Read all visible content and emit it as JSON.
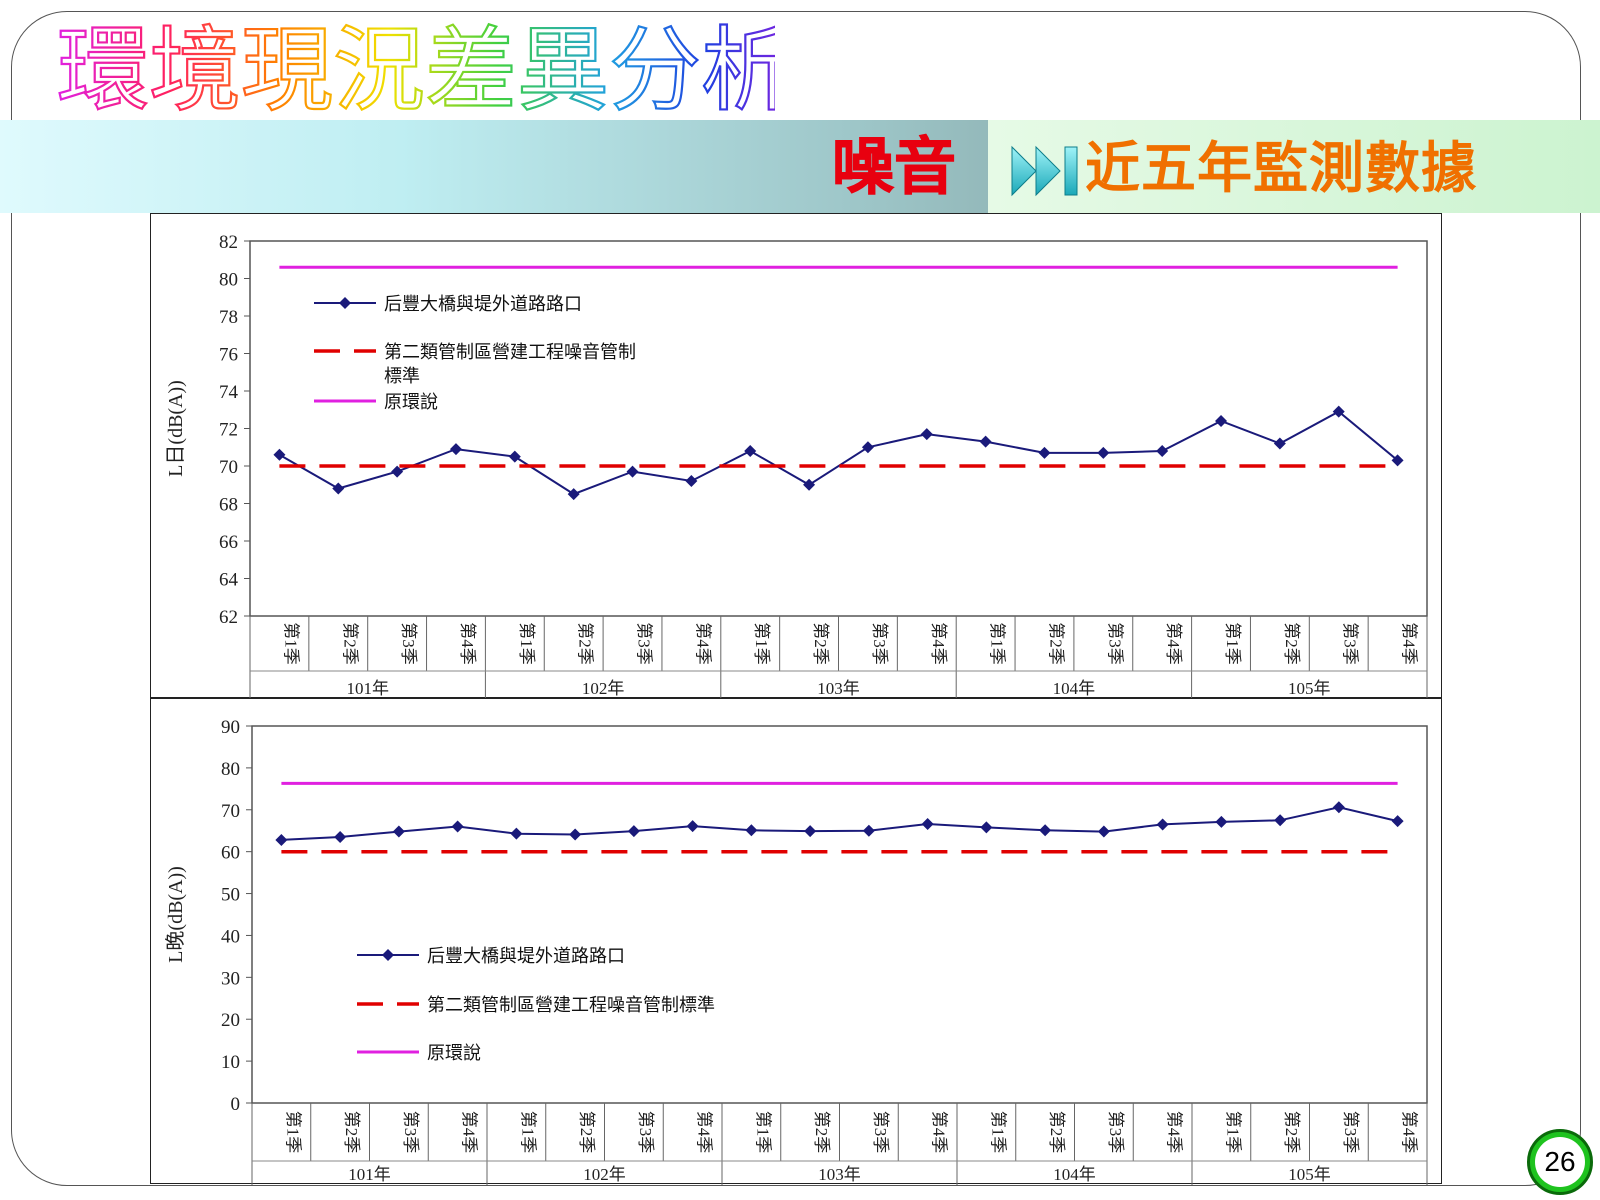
{
  "slide": {
    "title": "環境現況差異分析",
    "section": "噪音",
    "subtitle": "近五年監測數據",
    "page_number": "26",
    "icons": [
      "skip-forward-icon"
    ]
  },
  "chart_data": [
    {
      "type": "line",
      "ylabel": "L日(dB(A))",
      "ylim": [
        62,
        82
      ],
      "yticks": [
        62,
        64,
        66,
        68,
        70,
        72,
        74,
        76,
        78,
        80,
        82
      ],
      "grid": false,
      "legend_position": "upper-left",
      "categories": [
        "第1季",
        "第2季",
        "第3季",
        "第4季",
        "第1季",
        "第2季",
        "第3季",
        "第4季",
        "第1季",
        "第2季",
        "第3季",
        "第4季",
        "第1季",
        "第2季",
        "第3季",
        "第4季",
        "第1季",
        "第2季",
        "第3季",
        "第4季"
      ],
      "groups": [
        "101年",
        "102年",
        "103年",
        "104年",
        "105年"
      ],
      "series": [
        {
          "name": "后豐大橋與堤外道路路口",
          "style": "line-diamond",
          "color": "#1a1a7a",
          "values": [
            70.6,
            68.8,
            69.7,
            70.9,
            70.5,
            68.5,
            69.7,
            69.2,
            70.8,
            69.0,
            71.0,
            71.7,
            71.3,
            70.7,
            70.7,
            70.8,
            72.4,
            71.2,
            72.9,
            70.3
          ]
        },
        {
          "name": "第二類管制區營建工程噪音管制標準",
          "style": "dashed",
          "color": "#e00000",
          "values": [
            70,
            70,
            70,
            70,
            70,
            70,
            70,
            70,
            70,
            70,
            70,
            70,
            70,
            70,
            70,
            70,
            70,
            70,
            70,
            70
          ]
        },
        {
          "name": "原環說",
          "style": "solid",
          "color": "#e020e0",
          "values": [
            80.6,
            80.6,
            80.6,
            80.6,
            80.6,
            80.6,
            80.6,
            80.6,
            80.6,
            80.6,
            80.6,
            80.6,
            80.6,
            80.6,
            80.6,
            80.6,
            80.6,
            80.6,
            80.6,
            80.6
          ]
        }
      ],
      "legend_labels": [
        "后豐大橋與堤外道路路口",
        "第二類管制區營建工程噪音管制",
        "標準",
        "原環說"
      ]
    },
    {
      "type": "line",
      "ylabel": "L晚(dB(A))",
      "ylim": [
        0,
        90
      ],
      "yticks": [
        0,
        10,
        20,
        30,
        40,
        50,
        60,
        70,
        80,
        90
      ],
      "grid": false,
      "legend_position": "middle-left",
      "categories": [
        "第1季",
        "第2季",
        "第3季",
        "第4季",
        "第1季",
        "第2季",
        "第3季",
        "第4季",
        "第1季",
        "第2季",
        "第3季",
        "第4季",
        "第1季",
        "第2季",
        "第3季",
        "第4季",
        "第1季",
        "第2季",
        "第3季",
        "第4季"
      ],
      "groups": [
        "101年",
        "102年",
        "103年",
        "104年",
        "105年"
      ],
      "series": [
        {
          "name": "后豐大橋與堤外道路路口",
          "style": "line-diamond",
          "color": "#1a1a7a",
          "values": [
            62.8,
            63.5,
            64.8,
            66.0,
            64.3,
            64.1,
            64.9,
            66.1,
            65.1,
            64.9,
            65.0,
            66.6,
            65.8,
            65.1,
            64.8,
            66.5,
            67.1,
            67.5,
            70.6,
            67.3
          ]
        },
        {
          "name": "第二類管制區營建工程噪音管制標準",
          "style": "dashed",
          "color": "#e00000",
          "values": [
            60,
            60,
            60,
            60,
            60,
            60,
            60,
            60,
            60,
            60,
            60,
            60,
            60,
            60,
            60,
            60,
            60,
            60,
            60,
            60
          ]
        },
        {
          "name": "原環說",
          "style": "solid",
          "color": "#e020e0",
          "values": [
            76.3,
            76.3,
            76.3,
            76.3,
            76.3,
            76.3,
            76.3,
            76.3,
            76.3,
            76.3,
            76.3,
            76.3,
            76.3,
            76.3,
            76.3,
            76.3,
            76.3,
            76.3,
            76.3,
            76.3
          ]
        }
      ],
      "legend_labels": [
        "后豐大橋與堤外道路路口",
        "第二類管制區營建工程噪音管制標準",
        "原環說"
      ]
    }
  ]
}
